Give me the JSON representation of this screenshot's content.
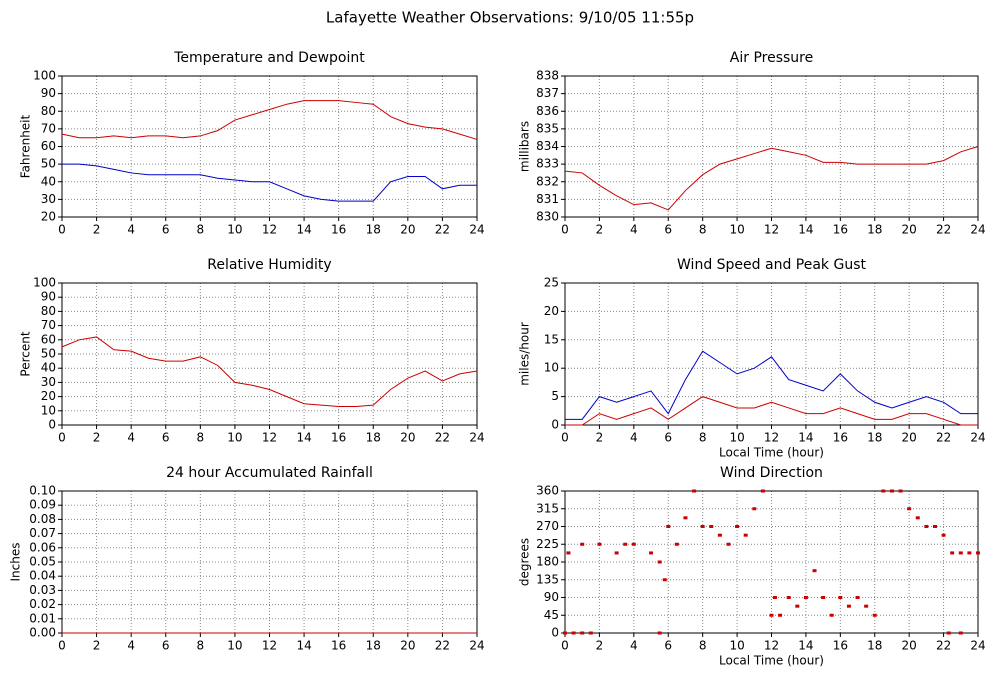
{
  "title": "Lafayette Weather Observations: 9/10/05 11:55p",
  "chart_data": [
    {
      "type": "line",
      "title": "Temperature and Dewpoint",
      "ylabel": "Fahrenheit",
      "x": [
        0,
        1,
        2,
        3,
        4,
        5,
        6,
        7,
        8,
        9,
        10,
        11,
        12,
        13,
        14,
        15,
        16,
        17,
        18,
        19,
        20,
        21,
        22,
        23,
        24
      ],
      "series": [
        {
          "color": "#cc0000",
          "values": [
            67,
            65,
            65,
            66,
            65,
            66,
            66,
            65,
            66,
            69,
            75,
            78,
            81,
            84,
            86,
            86,
            86,
            85,
            84,
            77,
            73,
            71,
            70,
            67,
            64
          ]
        },
        {
          "color": "#0000cc",
          "values": [
            50,
            50,
            49,
            47,
            45,
            44,
            44,
            44,
            44,
            42,
            41,
            40,
            40,
            36,
            32,
            30,
            29,
            29,
            29,
            40,
            43,
            43,
            36,
            38,
            38
          ]
        }
      ],
      "xlim": [
        0,
        24
      ],
      "xticks": [
        0,
        2,
        4,
        6,
        8,
        10,
        12,
        14,
        16,
        18,
        20,
        22,
        24
      ],
      "ylim": [
        20,
        100
      ],
      "yticks": [
        20,
        30,
        40,
        50,
        60,
        70,
        80,
        90,
        100
      ],
      "grid": true
    },
    {
      "type": "line",
      "title": "Air Pressure",
      "ylabel": "millibars",
      "x": [
        0,
        1,
        2,
        3,
        4,
        5,
        6,
        7,
        8,
        9,
        10,
        11,
        12,
        13,
        14,
        15,
        16,
        17,
        18,
        19,
        20,
        21,
        22,
        23,
        24
      ],
      "series": [
        {
          "color": "#cc0000",
          "values": [
            832.6,
            832.5,
            831.8,
            831.2,
            830.7,
            830.8,
            830.4,
            831.5,
            832.4,
            833.0,
            833.3,
            833.6,
            833.9,
            833.7,
            833.5,
            833.1,
            833.1,
            833.0,
            833.0,
            833.0,
            833.0,
            833.0,
            833.2,
            833.7,
            834.0
          ]
        }
      ],
      "xlim": [
        0,
        24
      ],
      "xticks": [
        0,
        2,
        4,
        6,
        8,
        10,
        12,
        14,
        16,
        18,
        20,
        22,
        24
      ],
      "ylim": [
        830,
        838
      ],
      "yticks": [
        830,
        831,
        832,
        833,
        834,
        835,
        836,
        837,
        838
      ],
      "grid": true
    },
    {
      "type": "line",
      "title": "Relative Humidity",
      "ylabel": "Percent",
      "x": [
        0,
        1,
        2,
        3,
        4,
        5,
        6,
        7,
        8,
        9,
        10,
        11,
        12,
        13,
        14,
        15,
        16,
        17,
        18,
        19,
        20,
        21,
        22,
        23,
        24
      ],
      "series": [
        {
          "color": "#cc0000",
          "values": [
            55,
            60,
            62,
            53,
            52,
            47,
            45,
            45,
            48,
            42,
            30,
            28,
            25,
            20,
            15,
            14,
            13,
            13,
            14,
            25,
            33,
            38,
            31,
            36,
            38
          ]
        }
      ],
      "xlim": [
        0,
        24
      ],
      "xticks": [
        0,
        2,
        4,
        6,
        8,
        10,
        12,
        14,
        16,
        18,
        20,
        22,
        24
      ],
      "ylim": [
        0,
        100
      ],
      "yticks": [
        0,
        10,
        20,
        30,
        40,
        50,
        60,
        70,
        80,
        90,
        100
      ],
      "grid": true
    },
    {
      "type": "line",
      "title": "Wind Speed and Peak Gust",
      "ylabel": "miles/hour",
      "xlabel": "Local Time (hour)",
      "x": [
        0,
        1,
        2,
        3,
        4,
        5,
        6,
        7,
        8,
        9,
        10,
        11,
        12,
        13,
        14,
        15,
        16,
        17,
        18,
        19,
        20,
        21,
        22,
        23,
        24
      ],
      "series": [
        {
          "color": "#0000cc",
          "values": [
            1,
            1,
            5,
            4,
            5,
            6,
            2,
            8,
            13,
            11,
            9,
            10,
            12,
            8,
            7,
            6,
            9,
            6,
            4,
            3,
            4,
            5,
            4,
            2,
            2
          ]
        },
        {
          "color": "#cc0000",
          "values": [
            0,
            0,
            2,
            1,
            2,
            3,
            1,
            3,
            5,
            4,
            3,
            3,
            4,
            3,
            2,
            2,
            3,
            2,
            1,
            1,
            2,
            2,
            1,
            0,
            0
          ]
        }
      ],
      "xlim": [
        0,
        24
      ],
      "xticks": [
        0,
        2,
        4,
        6,
        8,
        10,
        12,
        14,
        16,
        18,
        20,
        22,
        24
      ],
      "ylim": [
        0,
        25
      ],
      "yticks": [
        0,
        5,
        10,
        15,
        20,
        25
      ],
      "grid": true
    },
    {
      "type": "line",
      "title": "24 hour Accumulated Rainfall",
      "ylabel": "Inches",
      "x": [
        0,
        24
      ],
      "series": [
        {
          "color": "#cc0000",
          "values": [
            0,
            0
          ]
        }
      ],
      "xlim": [
        0,
        24
      ],
      "xticks": [
        0,
        2,
        4,
        6,
        8,
        10,
        12,
        14,
        16,
        18,
        20,
        22,
        24
      ],
      "ylim": [
        0,
        0.1
      ],
      "yticks": [
        {
          "value": 0,
          "label": "0.00"
        },
        {
          "value": 0.01,
          "label": "0.01"
        },
        {
          "value": 0.02,
          "label": "0.02"
        },
        {
          "value": 0.03,
          "label": "0.03"
        },
        {
          "value": 0.04,
          "label": "0.04"
        },
        {
          "value": 0.05,
          "label": "0.05"
        },
        {
          "value": 0.06,
          "label": "0.06"
        },
        {
          "value": 0.07,
          "label": "0.07"
        },
        {
          "value": 0.08,
          "label": "0.08"
        },
        {
          "value": 0.09,
          "label": "0.09"
        },
        {
          "value": 0.1,
          "label": "0.10"
        }
      ],
      "grid": true
    },
    {
      "type": "scatter",
      "title": "Wind Direction",
      "ylabel": "degrees",
      "xlabel": "Local Time (hour)",
      "color": "#cc0000",
      "x": [
        0,
        0.5,
        1,
        1.5,
        0.2,
        1,
        2,
        3,
        3.5,
        4,
        5,
        5.5,
        5.8,
        6,
        6.5,
        7,
        7.5,
        8,
        8.5,
        9,
        9.5,
        10,
        10.5,
        11,
        11.5,
        12,
        12.2,
        12.5,
        13,
        13.5,
        14,
        14.5,
        15,
        15.5,
        16,
        16.5,
        17,
        17.5,
        18,
        18.5,
        19,
        19.5,
        20,
        20.5,
        21,
        21.5,
        22,
        22.5,
        23,
        23.5,
        24,
        22.3,
        23,
        5.5
      ],
      "values": [
        0,
        0,
        0,
        0,
        203,
        225,
        225,
        203,
        225,
        225,
        203,
        180,
        135,
        270,
        225,
        292,
        360,
        270,
        270,
        248,
        225,
        270,
        248,
        315,
        360,
        45,
        90,
        45,
        90,
        68,
        90,
        158,
        90,
        45,
        90,
        68,
        90,
        68,
        45,
        360,
        360,
        360,
        315,
        292,
        270,
        270,
        248,
        203,
        203,
        203,
        203,
        0,
        0,
        0
      ],
      "xlim": [
        0,
        24
      ],
      "xticks": [
        0,
        2,
        4,
        6,
        8,
        10,
        12,
        14,
        16,
        18,
        20,
        22,
        24
      ],
      "ylim": [
        0,
        360
      ],
      "yticks": [
        0,
        45,
        90,
        135,
        180,
        225,
        270,
        315,
        360
      ],
      "grid": true
    }
  ]
}
